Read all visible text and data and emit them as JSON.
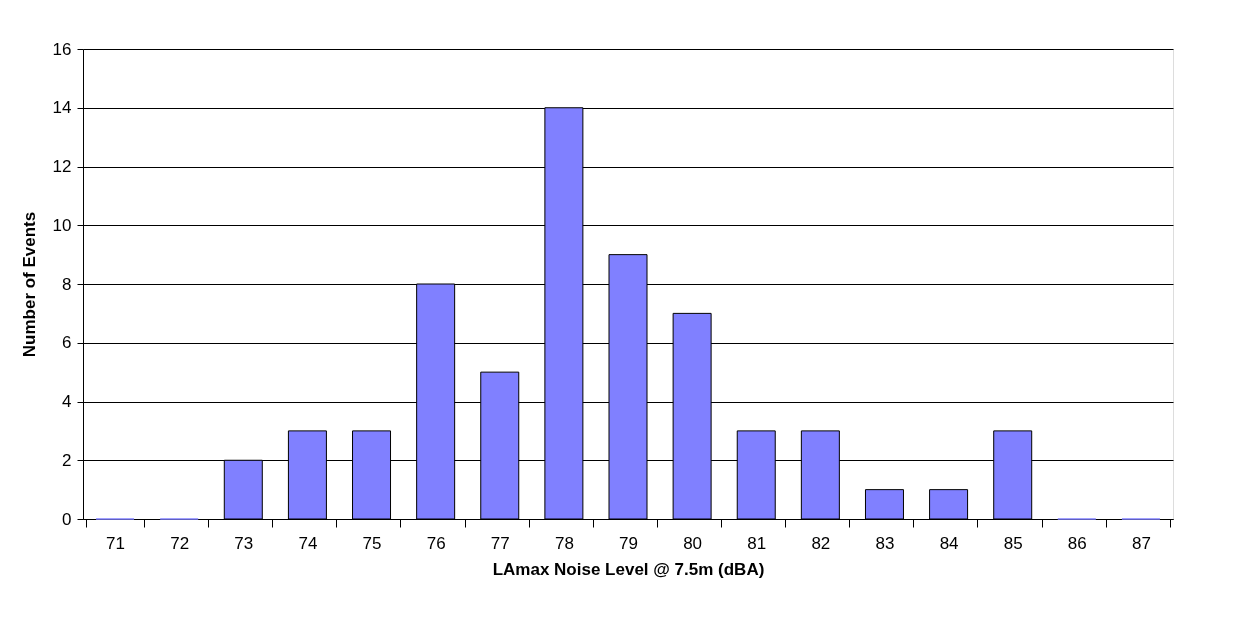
{
  "chart_data": {
    "type": "bar",
    "xlabel": "LAmax Noise Level @ 7.5m (dBA)",
    "ylabel": "Number of Events",
    "categories": [
      "71",
      "72",
      "73",
      "74",
      "75",
      "76",
      "77",
      "78",
      "79",
      "80",
      "81",
      "82",
      "83",
      "84",
      "85",
      "86",
      "87"
    ],
    "series": [
      {
        "color": "#8080ff",
        "values": [
          0,
          0,
          2,
          3,
          3,
          8,
          5,
          14,
          9,
          7,
          3,
          3,
          1,
          1,
          3,
          0,
          0
        ]
      }
    ],
    "ylim": [
      0,
      16
    ],
    "yticks": [
      0,
      2,
      4,
      6,
      8,
      10,
      12,
      14,
      16
    ],
    "grid": "y"
  }
}
